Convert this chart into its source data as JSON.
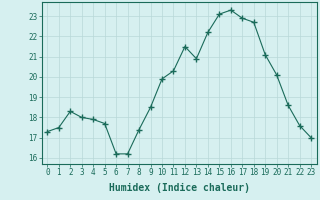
{
  "x": [
    0,
    1,
    2,
    3,
    4,
    5,
    6,
    7,
    8,
    9,
    10,
    11,
    12,
    13,
    14,
    15,
    16,
    17,
    18,
    19,
    20,
    21,
    22,
    23
  ],
  "y": [
    17.3,
    17.5,
    18.3,
    18.0,
    17.9,
    17.7,
    16.2,
    16.2,
    17.4,
    18.5,
    19.9,
    20.3,
    21.5,
    20.9,
    22.2,
    23.1,
    23.3,
    22.9,
    22.7,
    21.1,
    20.1,
    18.6,
    17.6,
    17.0
  ],
  "line_color": "#1a6b5a",
  "marker": "+",
  "marker_size": 4,
  "bg_color": "#d6f0f0",
  "grid_color": "#b8d8d8",
  "xlabel": "Humidex (Indice chaleur)",
  "ylim": [
    15.7,
    23.7
  ],
  "xlim": [
    -0.5,
    23.5
  ],
  "yticks": [
    16,
    17,
    18,
    19,
    20,
    21,
    22,
    23
  ],
  "xticks": [
    0,
    1,
    2,
    3,
    4,
    5,
    6,
    7,
    8,
    9,
    10,
    11,
    12,
    13,
    14,
    15,
    16,
    17,
    18,
    19,
    20,
    21,
    22,
    23
  ],
  "tick_fontsize": 5.5,
  "xlabel_fontsize": 7,
  "tick_color": "#1a6b5a",
  "axis_color": "#1a6b5a",
  "spine_color": "#1a6b5a"
}
